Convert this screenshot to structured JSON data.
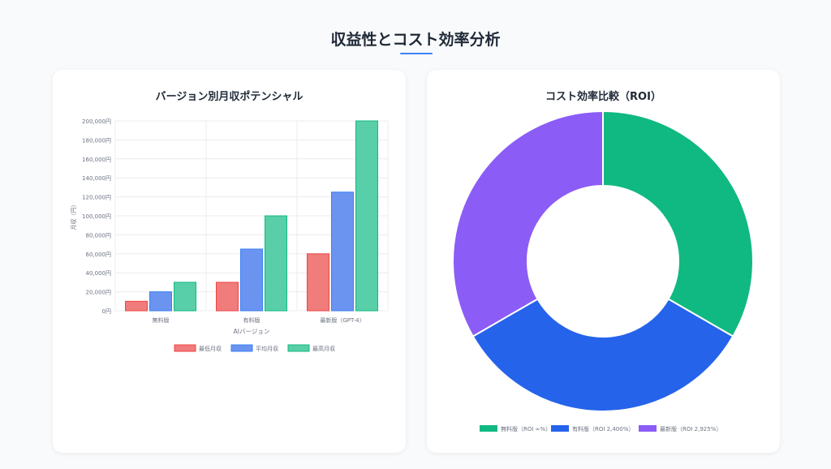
{
  "page": {
    "title": "収益性とコスト効率分析"
  },
  "bar_card": {
    "title": "バージョン別月収ポテンシャル"
  },
  "pie_card": {
    "title": "コスト効率比較（ROI）"
  },
  "chart_data": [
    {
      "type": "bar",
      "title": "バージョン別月収ポテンシャル",
      "xlabel": "AIバージョン",
      "ylabel": "月収（円）",
      "categories": [
        "無料版",
        "有料版",
        "最新版（GPT-4）"
      ],
      "ylim": [
        0,
        200000
      ],
      "yticks": [
        "0円",
        "20,000円",
        "40,000円",
        "60,000円",
        "80,000円",
        "100,000円",
        "120,000円",
        "140,000円",
        "160,000円",
        "180,000円",
        "200,000円"
      ],
      "grid": true,
      "legend_position": "bottom",
      "series": [
        {
          "name": "最低月収",
          "values": [
            10000,
            30000,
            60000
          ],
          "color": "#f07c7c",
          "border": "#ef4444"
        },
        {
          "name": "平均月収",
          "values": [
            20000,
            65000,
            125000
          ],
          "color": "#6b93f0",
          "border": "#3b82f6"
        },
        {
          "name": "最高月収",
          "values": [
            30000,
            100000,
            200000
          ],
          "color": "#58cfa8",
          "border": "#10b981"
        }
      ]
    },
    {
      "type": "pie",
      "title": "コスト効率比較（ROI）",
      "legend_position": "bottom",
      "labels": [
        "無料版（ROI ∞%）",
        "有料版（ROI 2,400%）",
        "最新版（ROI 2,925%）"
      ],
      "values": [
        1,
        1,
        1
      ],
      "colors": [
        "#10b981",
        "#2563eb",
        "#8b5cf6"
      ]
    }
  ]
}
